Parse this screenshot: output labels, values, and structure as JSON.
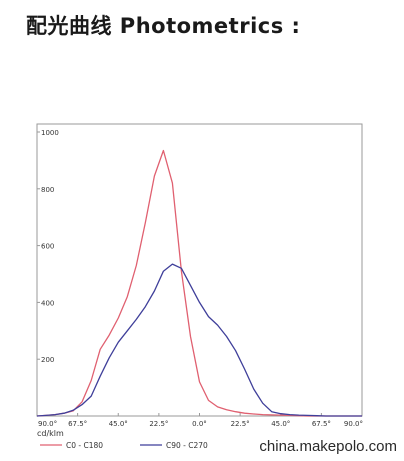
{
  "heading": "配光曲线 Photometrics :",
  "watermark": "china.makepolo.com",
  "chart_data": {
    "type": "line",
    "x_tick_labels": [
      "90.0°",
      "67.5°",
      "45.0°",
      "22.5°",
      "0.0°",
      "22.5°",
      "45.0°",
      "67.5°",
      "90.0°"
    ],
    "x": [
      -90,
      -85,
      -80,
      -75,
      -70,
      -65,
      -60,
      -55,
      -50,
      -45,
      -40,
      -35,
      -30,
      -25,
      -20,
      -15,
      -10,
      -5,
      0,
      5,
      10,
      15,
      20,
      25,
      30,
      35,
      40,
      45,
      50,
      55,
      60,
      65,
      70,
      75,
      80,
      85,
      90
    ],
    "ylim": [
      0,
      1000
    ],
    "y_ticks": [
      200,
      400,
      600,
      800,
      1000
    ],
    "unit_label": "cd/klm",
    "grid": false,
    "legend_position": "bottom-left",
    "series": [
      {
        "name": "C0 - C180",
        "color": "#e06070",
        "values": [
          0,
          2,
          5,
          10,
          18,
          50,
          125,
          235,
          285,
          345,
          420,
          530,
          680,
          845,
          935,
          820,
          510,
          280,
          120,
          55,
          32,
          22,
          15,
          10,
          7,
          5,
          4,
          3,
          2,
          1,
          0,
          0,
          0,
          0,
          0,
          0,
          0
        ]
      },
      {
        "name": "C90 - C270",
        "color": "#3f3f9a",
        "values": [
          0,
          2,
          5,
          10,
          20,
          40,
          70,
          140,
          205,
          260,
          300,
          340,
          385,
          440,
          510,
          535,
          520,
          460,
          400,
          350,
          320,
          280,
          230,
          165,
          95,
          45,
          15,
          8,
          5,
          3,
          2,
          1,
          0,
          0,
          0,
          0,
          0
        ]
      }
    ]
  }
}
